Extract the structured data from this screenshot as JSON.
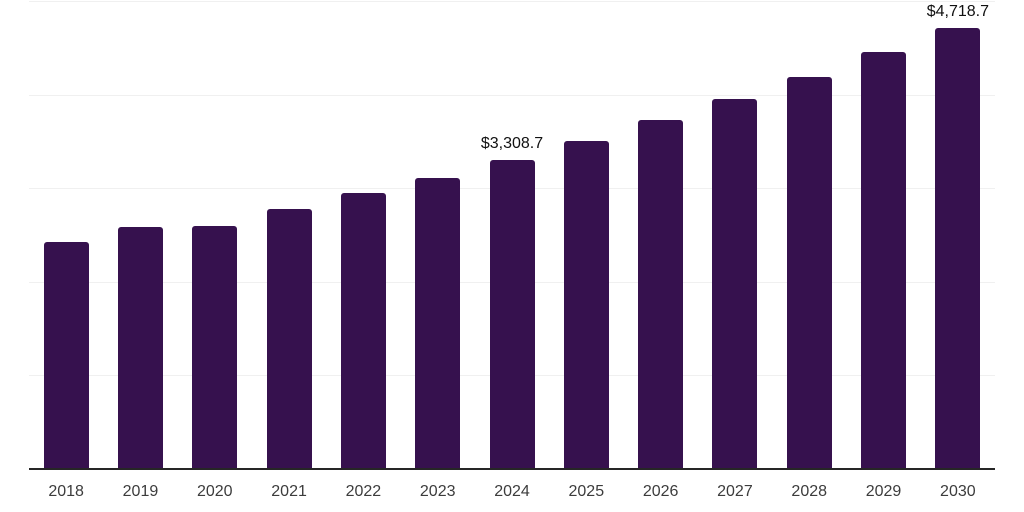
{
  "chart_data": {
    "type": "bar",
    "title": "",
    "xlabel": "",
    "ylabel": "",
    "categories": [
      "2018",
      "2019",
      "2020",
      "2021",
      "2022",
      "2023",
      "2024",
      "2025",
      "2026",
      "2027",
      "2028",
      "2029",
      "2030"
    ],
    "values": [
      2436,
      2596,
      2612,
      2788,
      2959,
      3120,
      3308.7,
      3515,
      3739,
      3964,
      4202,
      4469,
      4718.7
    ],
    "value_labels": {
      "2024": "$3,308.7",
      "2030": "$4,718.7"
    },
    "ylim": [
      0,
      5000
    ],
    "gridline_interval": 1000,
    "grid": true,
    "legend": false,
    "y_axis_tick_labels_visible": false,
    "colors": {
      "bar": "#36114E",
      "gridline": "#f0f0f0",
      "axis_line": "#262626",
      "x_label_text": "#3c3c3c",
      "value_label_text": "#111111",
      "background": "#ffffff"
    }
  }
}
